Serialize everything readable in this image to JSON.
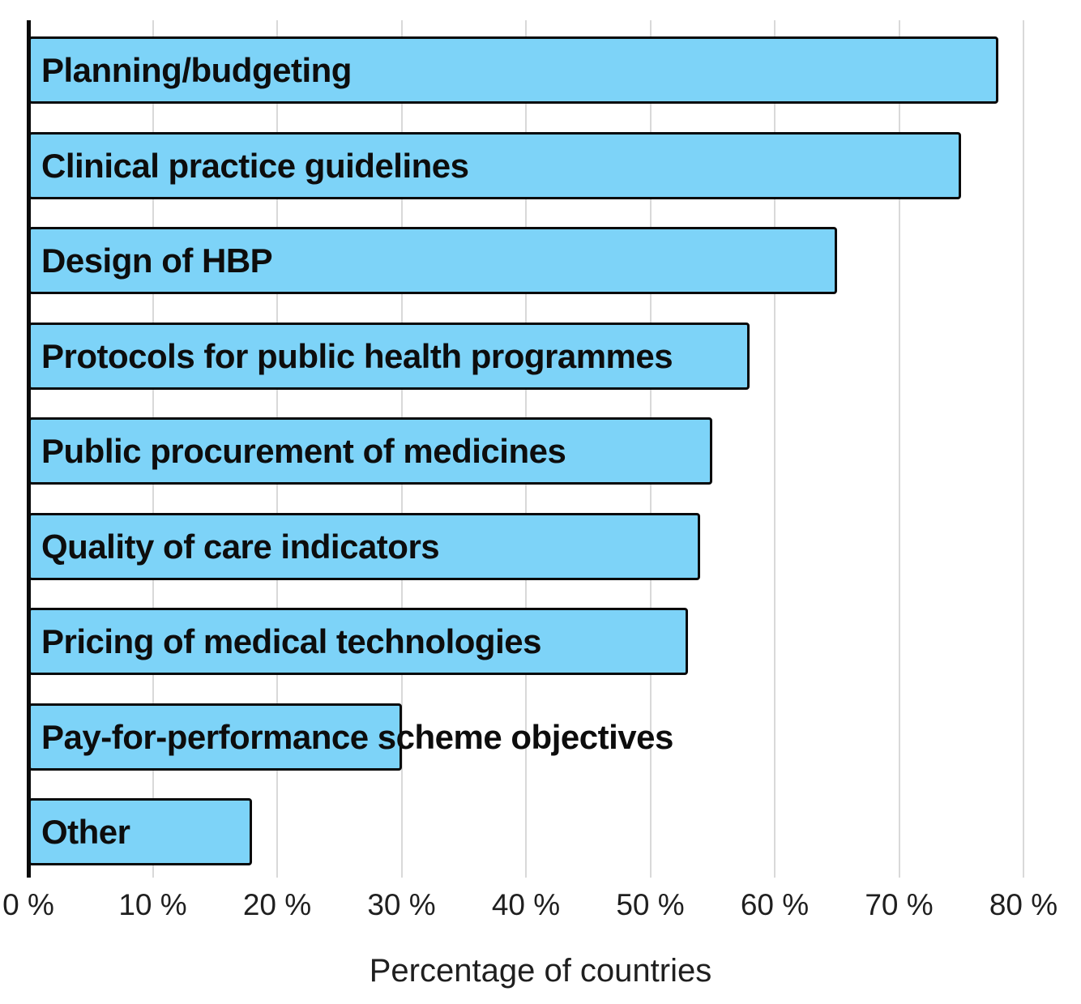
{
  "chart_data": {
    "type": "bar",
    "orientation": "horizontal",
    "title": "",
    "xlabel": "Percentage of countries",
    "ylabel": "",
    "xlim": [
      0,
      80
    ],
    "x_tick_step": 10,
    "grid": true,
    "legend": false,
    "categories": [
      "Planning/budgeting",
      "Clinical practice guidelines",
      "Design of HBP",
      "Protocols for public health programmes",
      "Public procurement of medicines",
      "Quality of care indicators",
      "Pricing of medical technologies",
      "Pay-for-performance scheme objectives",
      "Other"
    ],
    "values": [
      78,
      75,
      65,
      58,
      55,
      54,
      53,
      30,
      18
    ],
    "x_tick_labels": [
      "0 %",
      "10 %",
      "20 %",
      "30 %",
      "40 %",
      "50 %",
      "60 %",
      "70 %",
      "80 %"
    ],
    "colors": {
      "bar_fill": "#7dd3f8",
      "bar_border": "#0a0a0a",
      "gridline": "#d9d9d9",
      "axis_line": "#0a0a0a",
      "label_text": "#0d0d0d",
      "tick_text": "#1f1f1f"
    }
  }
}
